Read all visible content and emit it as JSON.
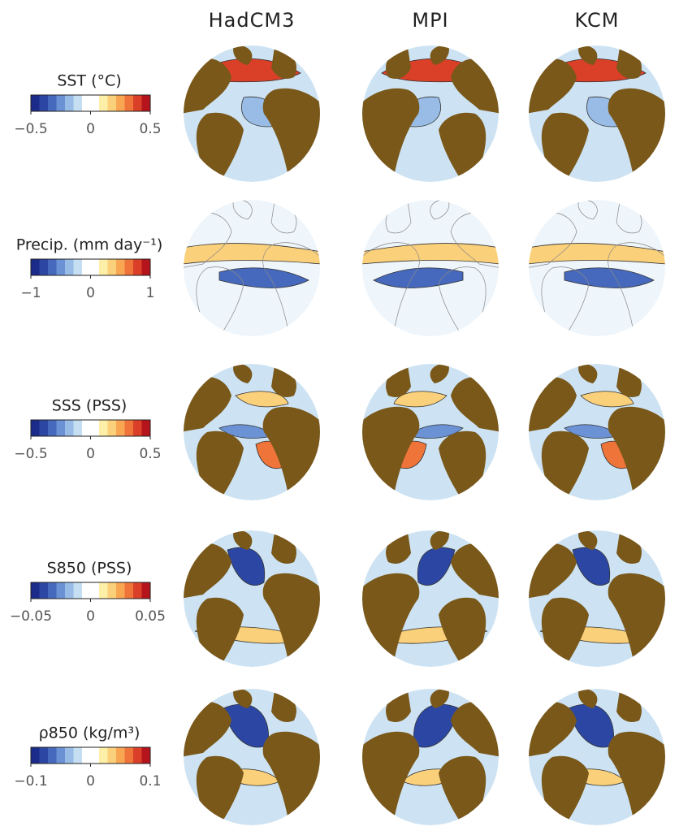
{
  "columns": [
    "HadCM3",
    "MPI",
    "KCM"
  ],
  "colormap": [
    "#1c2a8a",
    "#2c47a3",
    "#4669bd",
    "#6a92d4",
    "#98bce6",
    "#c6def2",
    "#ffffff",
    "#ffffff",
    "#fdeea8",
    "#fbd07a",
    "#f8a652",
    "#ef7439",
    "#d94027",
    "#b5141d"
  ],
  "rows": [
    {
      "label": "SST  (°C)",
      "lim": [
        -0.5,
        0.5
      ],
      "ticks": [
        {
          "value": -0.5,
          "label": "−0.5"
        },
        0,
        0.5
      ]
    },
    {
      "label": "Precip.  (mm day⁻¹)",
      "lim": [
        -1,
        1
      ],
      "ticks": [
        {
          "value": -1,
          "label": "−1"
        },
        0,
        1
      ]
    },
    {
      "label": "SSS  (PSS)",
      "lim": [
        -0.5,
        0.5
      ],
      "ticks": [
        {
          "value": -0.5,
          "label": "−0.5"
        },
        0,
        0.5
      ]
    },
    {
      "label": "S850  (PSS)",
      "lim": [
        -0.05,
        0.05
      ],
      "ticks": [
        {
          "value": -0.05,
          "label": "−0.05"
        },
        0,
        0.05
      ]
    },
    {
      "label": "ρ850  (kg/m³)",
      "lim": [
        -0.1,
        0.1
      ],
      "ticks": [
        {
          "value": -0.1,
          "label": "−0.1"
        },
        0,
        0.1
      ]
    }
  ]
}
